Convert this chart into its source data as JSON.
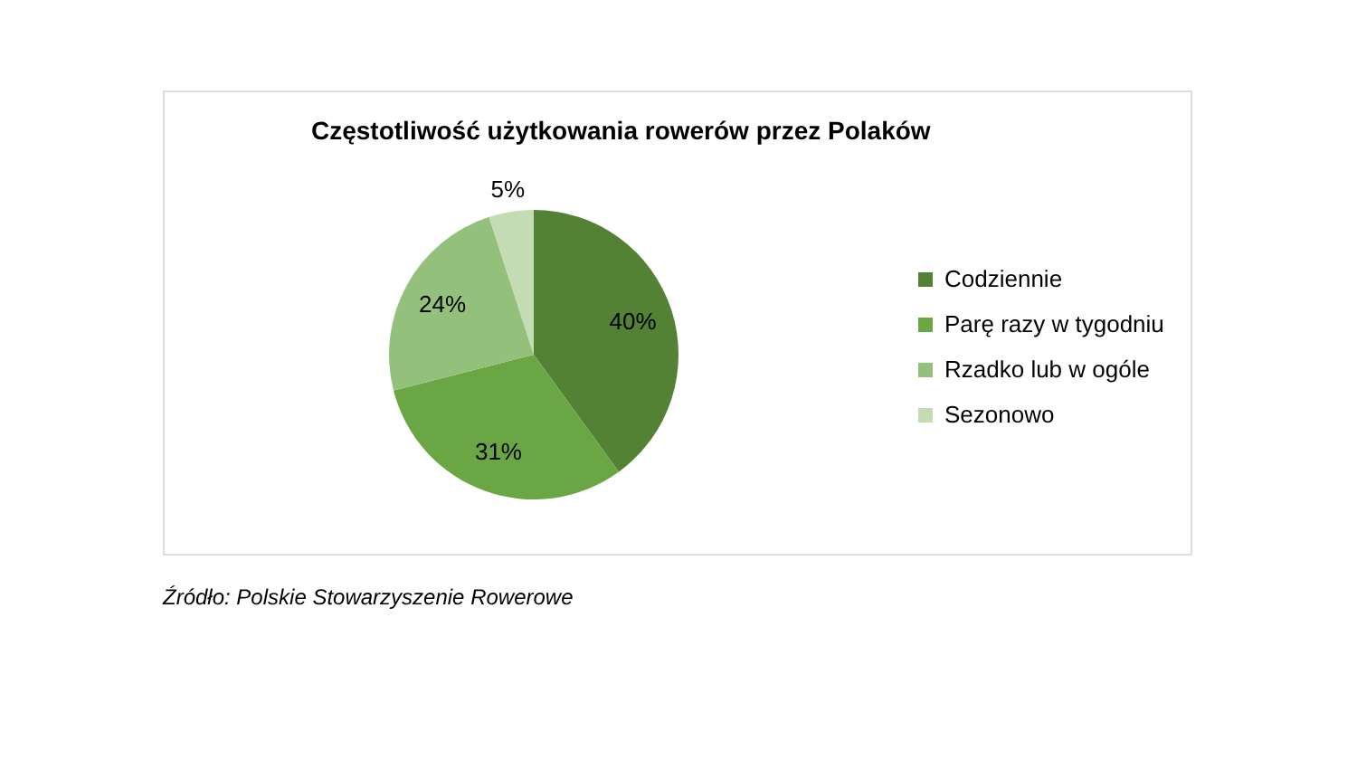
{
  "chart_data": {
    "type": "pie",
    "title": "Częstotliwość użytkowania rowerów przez Polaków",
    "categories": [
      "Codziennie",
      "Parę razy w tygodniu",
      "Rzadko lub w ogóle",
      "Sezonowo"
    ],
    "values": [
      40,
      31,
      24,
      5
    ],
    "colors": [
      "#548235",
      "#6aa744",
      "#93c17b",
      "#c3dcb4"
    ],
    "value_labels": [
      "40%",
      "31%",
      "24%",
      "5%"
    ],
    "legend": "right",
    "annotations": [
      "Źródło: Polskie Stowarzyszenie Rowerowe"
    ]
  }
}
